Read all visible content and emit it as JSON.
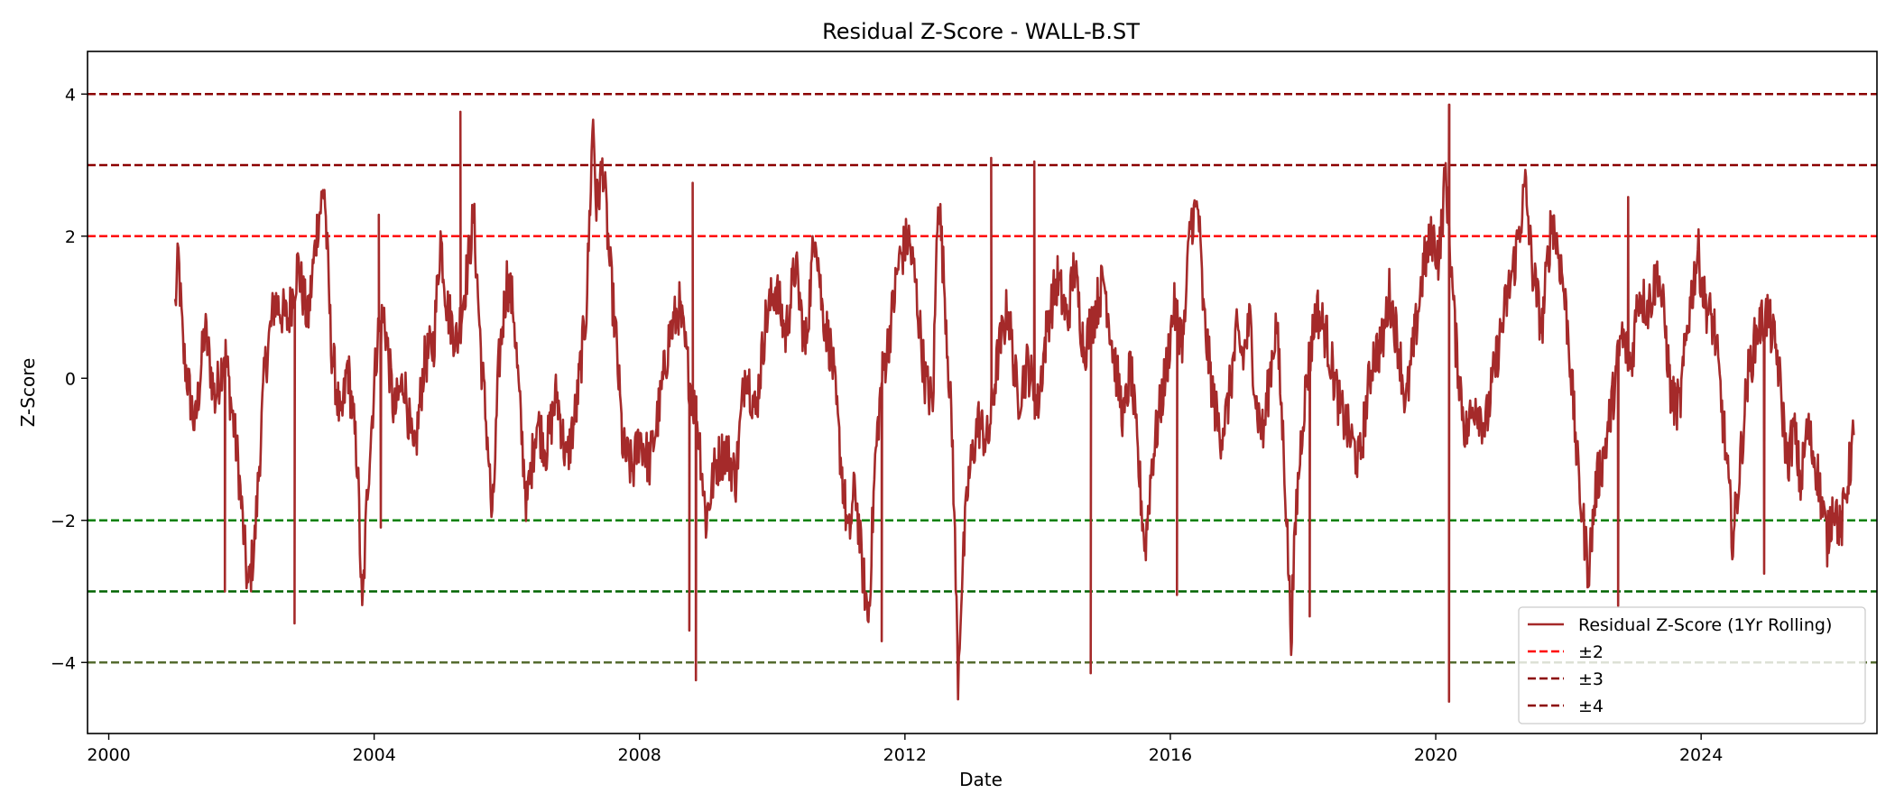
{
  "chart_data": {
    "type": "line",
    "title": "Residual Z-Score - WALL-B.ST",
    "xlabel": "Date",
    "ylabel": "Z-Score",
    "xlim": [
      1999.68,
      2026.65
    ],
    "ylim": [
      -5.0,
      4.6
    ],
    "x_ticks": [
      2000,
      2004,
      2008,
      2012,
      2016,
      2020,
      2024
    ],
    "x_tick_labels": [
      "2000",
      "2004",
      "2008",
      "2012",
      "2016",
      "2020",
      "2024"
    ],
    "y_ticks": [
      4,
      2,
      0,
      -2,
      -4
    ],
    "y_tick_labels": [
      "4",
      "2",
      "0",
      "−2",
      "−4"
    ],
    "grid": false,
    "legend_position": "lower right",
    "series": [
      {
        "name": "Residual Z-Score (1Yr Rolling)",
        "color": "#a52a2a",
        "keypoints": [
          [
            2001.0,
            1.0
          ],
          [
            2001.05,
            1.7
          ],
          [
            2001.12,
            0.4
          ],
          [
            2001.3,
            -0.7
          ],
          [
            2001.45,
            0.7
          ],
          [
            2001.6,
            -0.3
          ],
          [
            2001.75,
            0.4
          ],
          [
            2001.95,
            -1.2
          ],
          [
            2002.1,
            -3.0
          ],
          [
            2002.2,
            -2.3
          ],
          [
            2002.35,
            0.1
          ],
          [
            2002.5,
            1.1
          ],
          [
            2002.7,
            0.8
          ],
          [
            2002.85,
            1.6
          ],
          [
            2003.0,
            0.8
          ],
          [
            2003.15,
            2.2
          ],
          [
            2003.25,
            2.7
          ],
          [
            2003.35,
            0.5
          ],
          [
            2003.5,
            -0.7
          ],
          [
            2003.6,
            0.2
          ],
          [
            2003.75,
            -1.2
          ],
          [
            2003.82,
            -3.4
          ],
          [
            2003.9,
            -1.5
          ],
          [
            2004.05,
            0.6
          ],
          [
            2004.15,
            0.9
          ],
          [
            2004.3,
            -0.5
          ],
          [
            2004.45,
            0.0
          ],
          [
            2004.6,
            -1.2
          ],
          [
            2004.75,
            0.2
          ],
          [
            2004.9,
            0.5
          ],
          [
            2005.0,
            2.0
          ],
          [
            2005.1,
            1.0
          ],
          [
            2005.25,
            0.5
          ],
          [
            2005.4,
            1.5
          ],
          [
            2005.5,
            2.3
          ],
          [
            2005.62,
            0.2
          ],
          [
            2005.72,
            -1.0
          ],
          [
            2005.78,
            -2.1
          ],
          [
            2005.88,
            0.2
          ],
          [
            2006.0,
            1.4
          ],
          [
            2006.1,
            1.0
          ],
          [
            2006.2,
            -0.5
          ],
          [
            2006.3,
            -1.8
          ],
          [
            2006.45,
            -0.6
          ],
          [
            2006.6,
            -1.0
          ],
          [
            2006.75,
            -0.2
          ],
          [
            2006.9,
            -1.2
          ],
          [
            2007.05,
            -0.4
          ],
          [
            2007.2,
            1.0
          ],
          [
            2007.3,
            3.7
          ],
          [
            2007.35,
            2.4
          ],
          [
            2007.45,
            3.0
          ],
          [
            2007.55,
            1.6
          ],
          [
            2007.65,
            0.5
          ],
          [
            2007.75,
            -1.0
          ],
          [
            2007.9,
            -1.3
          ],
          [
            2008.0,
            -0.8
          ],
          [
            2008.15,
            -1.2
          ],
          [
            2008.3,
            -0.4
          ],
          [
            2008.45,
            0.6
          ],
          [
            2008.6,
            1.0
          ],
          [
            2008.75,
            0.0
          ],
          [
            2008.9,
            -0.8
          ],
          [
            2009.0,
            -2.0
          ],
          [
            2009.15,
            -1.2
          ],
          [
            2009.3,
            -1.0
          ],
          [
            2009.45,
            -1.4
          ],
          [
            2009.6,
            0.2
          ],
          [
            2009.75,
            -0.5
          ],
          [
            2009.9,
            0.8
          ],
          [
            2010.05,
            1.3
          ],
          [
            2010.2,
            0.6
          ],
          [
            2010.35,
            1.6
          ],
          [
            2010.5,
            0.4
          ],
          [
            2010.65,
            2.2
          ],
          [
            2010.75,
            1.0
          ],
          [
            2010.9,
            0.3
          ],
          [
            2011.0,
            -0.8
          ],
          [
            2011.15,
            -2.3
          ],
          [
            2011.25,
            -1.5
          ],
          [
            2011.35,
            -2.6
          ],
          [
            2011.45,
            -3.4
          ],
          [
            2011.55,
            -1.2
          ],
          [
            2011.65,
            0.0
          ],
          [
            2011.75,
            0.5
          ],
          [
            2011.9,
            1.6
          ],
          [
            2012.05,
            2.0
          ],
          [
            2012.15,
            1.4
          ],
          [
            2012.3,
            0.0
          ],
          [
            2012.42,
            -0.4
          ],
          [
            2012.5,
            2.7
          ],
          [
            2012.6,
            1.2
          ],
          [
            2012.72,
            -1.0
          ],
          [
            2012.8,
            -4.2
          ],
          [
            2012.85,
            -3.0
          ],
          [
            2012.95,
            -1.5
          ],
          [
            2013.1,
            -0.6
          ],
          [
            2013.25,
            -0.9
          ],
          [
            2013.4,
            0.3
          ],
          [
            2013.55,
            1.0
          ],
          [
            2013.7,
            -0.3
          ],
          [
            2013.85,
            0.2
          ],
          [
            2014.0,
            -0.4
          ],
          [
            2014.15,
            0.8
          ],
          [
            2014.3,
            1.4
          ],
          [
            2014.45,
            0.8
          ],
          [
            2014.55,
            1.6
          ],
          [
            2014.7,
            0.4
          ],
          [
            2014.85,
            0.9
          ],
          [
            2015.0,
            1.4
          ],
          [
            2015.15,
            0.3
          ],
          [
            2015.3,
            -0.6
          ],
          [
            2015.4,
            0.2
          ],
          [
            2015.5,
            -1.0
          ],
          [
            2015.62,
            -2.4
          ],
          [
            2015.72,
            -1.2
          ],
          [
            2015.85,
            -0.4
          ],
          [
            2015.95,
            0.2
          ],
          [
            2016.05,
            1.0
          ],
          [
            2016.2,
            0.5
          ],
          [
            2016.3,
            2.2
          ],
          [
            2016.42,
            2.4
          ],
          [
            2016.5,
            0.9
          ],
          [
            2016.65,
            -0.3
          ],
          [
            2016.75,
            -0.8
          ],
          [
            2016.85,
            -0.5
          ],
          [
            2017.0,
            0.6
          ],
          [
            2017.1,
            0.3
          ],
          [
            2017.2,
            0.8
          ],
          [
            2017.3,
            -0.4
          ],
          [
            2017.4,
            -0.8
          ],
          [
            2017.52,
            0.2
          ],
          [
            2017.6,
            0.8
          ],
          [
            2017.72,
            -1.2
          ],
          [
            2017.82,
            -3.6
          ],
          [
            2017.9,
            -1.8
          ],
          [
            2018.0,
            -0.5
          ],
          [
            2018.1,
            0.3
          ],
          [
            2018.2,
            1.0
          ],
          [
            2018.35,
            0.6
          ],
          [
            2018.45,
            0.1
          ],
          [
            2018.55,
            -0.4
          ],
          [
            2018.7,
            -0.8
          ],
          [
            2018.85,
            -1.2
          ],
          [
            2018.95,
            -0.4
          ],
          [
            2019.05,
            0.3
          ],
          [
            2019.2,
            0.5
          ],
          [
            2019.3,
            1.2
          ],
          [
            2019.45,
            0.4
          ],
          [
            2019.55,
            -0.4
          ],
          [
            2019.7,
            0.7
          ],
          [
            2019.82,
            1.6
          ],
          [
            2019.95,
            2.0
          ],
          [
            2020.05,
            1.7
          ],
          [
            2020.15,
            2.9
          ],
          [
            2020.22,
            1.8
          ],
          [
            2020.3,
            0.5
          ],
          [
            2020.45,
            -0.8
          ],
          [
            2020.6,
            -0.3
          ],
          [
            2020.75,
            -0.7
          ],
          [
            2020.9,
            0.2
          ],
          [
            2021.05,
            1.0
          ],
          [
            2021.2,
            1.7
          ],
          [
            2021.35,
            2.7
          ],
          [
            2021.45,
            1.6
          ],
          [
            2021.6,
            0.7
          ],
          [
            2021.75,
            2.3
          ],
          [
            2021.9,
            1.5
          ],
          [
            2022.0,
            0.6
          ],
          [
            2022.15,
            -1.4
          ],
          [
            2022.3,
            -2.7
          ],
          [
            2022.42,
            -1.5
          ],
          [
            2022.55,
            -1.0
          ],
          [
            2022.68,
            -0.2
          ],
          [
            2022.8,
            0.6
          ],
          [
            2022.95,
            0.2
          ],
          [
            2023.05,
            1.2
          ],
          [
            2023.2,
            1.0
          ],
          [
            2023.35,
            1.5
          ],
          [
            2023.45,
            0.8
          ],
          [
            2023.55,
            -0.3
          ],
          [
            2023.68,
            -0.4
          ],
          [
            2023.8,
            0.8
          ],
          [
            2023.95,
            1.8
          ],
          [
            2024.05,
            1.1
          ],
          [
            2024.2,
            0.7
          ],
          [
            2024.35,
            -0.8
          ],
          [
            2024.48,
            -2.3
          ],
          [
            2024.58,
            -1.3
          ],
          [
            2024.7,
            0.0
          ],
          [
            2024.85,
            0.7
          ],
          [
            2025.0,
            0.9
          ],
          [
            2025.15,
            0.3
          ],
          [
            2025.3,
            -1.2
          ],
          [
            2025.4,
            -0.7
          ],
          [
            2025.5,
            -1.5
          ],
          [
            2025.6,
            -0.7
          ],
          [
            2025.75,
            -1.3
          ],
          [
            2025.9,
            -2.3
          ],
          [
            2026.0,
            -1.7
          ],
          [
            2026.1,
            -2.2
          ],
          [
            2026.2,
            -1.5
          ],
          [
            2026.3,
            -0.8
          ]
        ],
        "extrema": [
          [
            2001.75,
            -3.0
          ],
          [
            2002.8,
            -3.45
          ],
          [
            2004.07,
            2.3
          ],
          [
            2004.1,
            -2.1
          ],
          [
            2005.3,
            3.75
          ],
          [
            2008.8,
            2.75
          ],
          [
            2008.85,
            -4.25
          ],
          [
            2008.75,
            -3.55
          ],
          [
            2011.65,
            -3.7
          ],
          [
            2013.3,
            3.1
          ],
          [
            2013.95,
            3.05
          ],
          [
            2014.8,
            -4.15
          ],
          [
            2016.1,
            -3.05
          ],
          [
            2018.1,
            -3.35
          ],
          [
            2020.2,
            3.85
          ],
          [
            2020.2,
            -4.55
          ],
          [
            2022.75,
            -3.2
          ],
          [
            2022.9,
            2.55
          ],
          [
            2024.95,
            -2.75
          ]
        ]
      }
    ],
    "reference_lines": [
      {
        "legend": "±2",
        "color": "#ff0000",
        "y": 2
      },
      {
        "legend": "",
        "color": "#008000",
        "y": -2
      },
      {
        "legend": "±3",
        "color": "#8b0000",
        "y": 3
      },
      {
        "legend": "",
        "color": "#006400",
        "y": -3
      },
      {
        "legend": "±4",
        "color": "#8b0000",
        "y": 4
      },
      {
        "legend": "",
        "color": "#556b2f",
        "y": -4
      }
    ]
  }
}
